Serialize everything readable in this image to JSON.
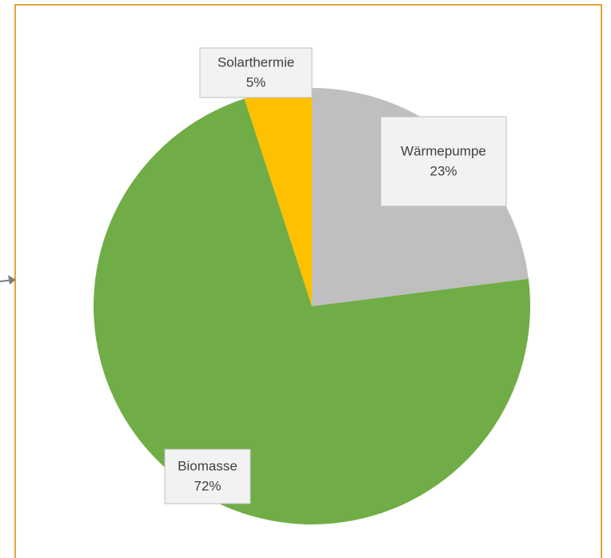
{
  "chart_data": {
    "type": "pie",
    "categories": [
      "Wärmepumpe",
      "Biomasse",
      "Solarthermie"
    ],
    "values": [
      23,
      72,
      5
    ],
    "value_labels": [
      "23%",
      "72%",
      "5%"
    ],
    "colors": [
      "#bfbfbf",
      "#70ad47",
      "#ffc000"
    ]
  }
}
